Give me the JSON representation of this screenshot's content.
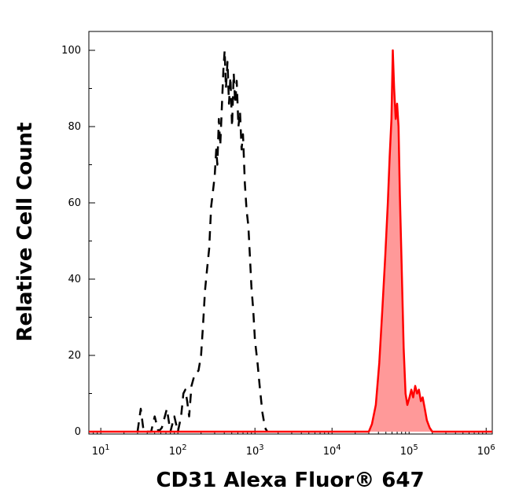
{
  "chart_data": {
    "type": "area",
    "xlabel": "CD31 Alexa Fluor® 647",
    "ylabel": "Relative Cell Count",
    "x_scale": "log",
    "xlim": [
      7,
      1200000
    ],
    "ylim": [
      0,
      100
    ],
    "x_ticks": [
      {
        "value": 10,
        "base": "10",
        "exp": "1"
      },
      {
        "value": 100,
        "base": "10",
        "exp": "2"
      },
      {
        "value": 1000,
        "base": "10",
        "exp": "3"
      },
      {
        "value": 10000,
        "base": "10",
        "exp": "4"
      },
      {
        "value": 100000,
        "base": "10",
        "exp": "5"
      },
      {
        "value": 1000000,
        "base": "10",
        "exp": "6"
      }
    ],
    "y_ticks": [
      "0",
      "20",
      "40",
      "60",
      "80",
      "100"
    ],
    "grid": false,
    "series": [
      {
        "style": "dashed",
        "fill": false,
        "color": "#000000",
        "points": [
          [
            30,
            0
          ],
          [
            33,
            6
          ],
          [
            36,
            0
          ],
          [
            45,
            0
          ],
          [
            50,
            4
          ],
          [
            56,
            0
          ],
          [
            62,
            1
          ],
          [
            72,
            6
          ],
          [
            80,
            0
          ],
          [
            90,
            4
          ],
          [
            100,
            0
          ],
          [
            110,
            4
          ],
          [
            118,
            10
          ],
          [
            125,
            11
          ],
          [
            132,
            8
          ],
          [
            140,
            4
          ],
          [
            150,
            12
          ],
          [
            165,
            15
          ],
          [
            185,
            16
          ],
          [
            200,
            20
          ],
          [
            212,
            28
          ],
          [
            225,
            37
          ],
          [
            240,
            43
          ],
          [
            255,
            48
          ],
          [
            270,
            59
          ],
          [
            285,
            63
          ],
          [
            300,
            67
          ],
          [
            315,
            74
          ],
          [
            325,
            70
          ],
          [
            340,
            82
          ],
          [
            355,
            75
          ],
          [
            372,
            85
          ],
          [
            390,
            95
          ],
          [
            405,
            100
          ],
          [
            420,
            90
          ],
          [
            440,
            97
          ],
          [
            460,
            86
          ],
          [
            480,
            93
          ],
          [
            505,
            80
          ],
          [
            530,
            94
          ],
          [
            555,
            86
          ],
          [
            580,
            92
          ],
          [
            610,
            80
          ],
          [
            640,
            84
          ],
          [
            670,
            74
          ],
          [
            700,
            78
          ],
          [
            740,
            65
          ],
          [
            780,
            58
          ],
          [
            820,
            54
          ],
          [
            860,
            46
          ],
          [
            900,
            38
          ],
          [
            950,
            32
          ],
          [
            1000,
            24
          ],
          [
            1080,
            18
          ],
          [
            1150,
            12
          ],
          [
            1250,
            5
          ],
          [
            1350,
            1
          ],
          [
            1450,
            0
          ]
        ]
      },
      {
        "style": "solid",
        "fill": true,
        "color": "#ff0000",
        "fill_color": "#ff9999",
        "points": [
          [
            7,
            0
          ],
          [
            500,
            0
          ],
          [
            5000,
            0
          ],
          [
            30000,
            0
          ],
          [
            33000,
            2
          ],
          [
            37000,
            7
          ],
          [
            41000,
            18
          ],
          [
            45000,
            32
          ],
          [
            49000,
            46
          ],
          [
            53000,
            60
          ],
          [
            56000,
            72
          ],
          [
            59000,
            82
          ],
          [
            61500,
            100
          ],
          [
            64000,
            90
          ],
          [
            67000,
            82
          ],
          [
            70000,
            86
          ],
          [
            73000,
            80
          ],
          [
            76000,
            62
          ],
          [
            80000,
            44
          ],
          [
            85000,
            22
          ],
          [
            90000,
            10
          ],
          [
            95000,
            7
          ],
          [
            101000,
            9
          ],
          [
            107000,
            11
          ],
          [
            113000,
            9
          ],
          [
            120000,
            12
          ],
          [
            127000,
            10
          ],
          [
            134000,
            11
          ],
          [
            142000,
            8
          ],
          [
            150000,
            9
          ],
          [
            160000,
            6
          ],
          [
            170000,
            3
          ],
          [
            185000,
            1
          ],
          [
            200000,
            0
          ],
          [
            400000,
            0
          ],
          [
            1200000,
            0
          ]
        ]
      }
    ]
  }
}
